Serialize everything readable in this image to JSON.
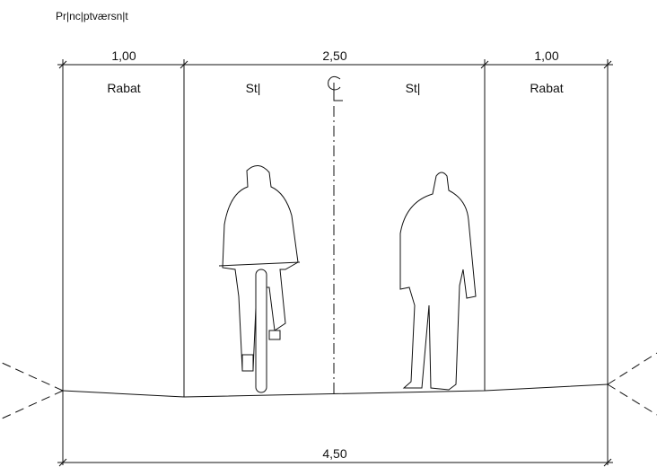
{
  "title": "Pr|nc|ptværsn|t",
  "top_dimensions": [
    "1,00",
    "2,50",
    "1,00"
  ],
  "zones": [
    "Rabat",
    "St|",
    "St|",
    "Rabat"
  ],
  "bottom_dimension": "4,50"
}
